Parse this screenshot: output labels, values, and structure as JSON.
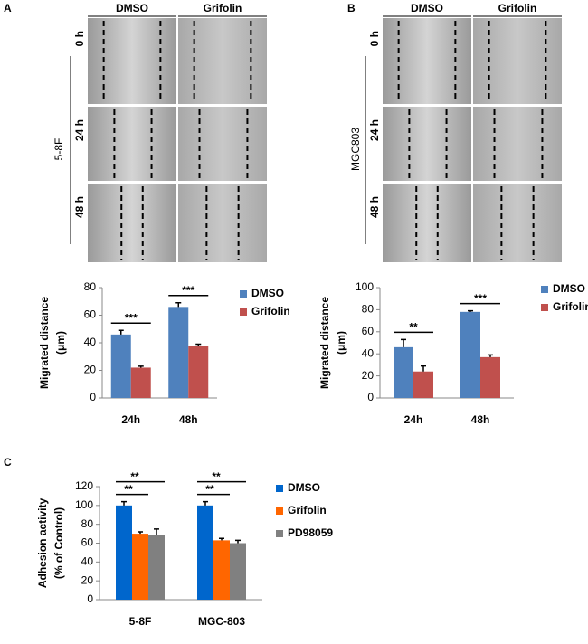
{
  "panel_labels": [
    "A",
    "B",
    "C"
  ],
  "micrographs": [
    {
      "cell_line": "5-8F",
      "columns": [
        "DMSO",
        "Grifolin"
      ],
      "rows": [
        "0 h",
        "24 h",
        "48 h"
      ]
    },
    {
      "cell_line": "MGC803",
      "columns": [
        "DMSO",
        "Grifolin"
      ],
      "rows": [
        "0 h",
        "24 h",
        "48 h"
      ]
    }
  ],
  "chart_data": [
    {
      "type": "bar",
      "y_label": [
        "Migrated distance",
        "(μm)"
      ],
      "categories": [
        "24h",
        "48h"
      ],
      "series": [
        {
          "name": "DMSO",
          "color": "#4f81bd",
          "values": [
            46,
            66
          ],
          "errors": [
            3,
            3
          ]
        },
        {
          "name": "Grifolin",
          "color": "#c0504d",
          "values": [
            22,
            38
          ],
          "errors": [
            1,
            1
          ]
        }
      ],
      "significance": [
        [
          "***"
        ],
        [
          "***"
        ]
      ],
      "ylim": [
        0,
        80
      ],
      "yticks": [
        0,
        20,
        40,
        60,
        80
      ]
    },
    {
      "type": "bar",
      "y_label": [
        "Migrated distance",
        "(μm)"
      ],
      "categories": [
        "24h",
        "48h"
      ],
      "series": [
        {
          "name": "DMSO",
          "color": "#4f81bd",
          "values": [
            46,
            78
          ],
          "errors": [
            7,
            1
          ]
        },
        {
          "name": "Grifolin",
          "color": "#c0504d",
          "values": [
            24,
            37
          ],
          "errors": [
            5,
            2
          ]
        }
      ],
      "significance": [
        [
          "**"
        ],
        [
          "***"
        ]
      ],
      "ylim": [
        0,
        100
      ],
      "yticks": [
        0,
        20,
        40,
        60,
        80,
        100
      ]
    },
    {
      "type": "bar",
      "y_label": [
        "Adhesion activity",
        "(% of Control)"
      ],
      "categories": [
        "5-8F",
        "MGC-803"
      ],
      "series": [
        {
          "name": "DMSO",
          "color": "#0066cc",
          "values": [
            100,
            100
          ],
          "errors": [
            4,
            4
          ]
        },
        {
          "name": "Grifolin",
          "color": "#ff6600",
          "values": [
            70,
            63
          ],
          "errors": [
            2,
            2
          ]
        },
        {
          "name": "PD98059",
          "color": "#808080",
          "values": [
            69,
            60
          ],
          "errors": [
            6,
            3
          ]
        }
      ],
      "significance": [
        [
          "**",
          "**"
        ],
        [
          "**",
          "**"
        ]
      ],
      "ylim": [
        0,
        120
      ],
      "yticks": [
        0,
        20,
        40,
        60,
        80,
        100,
        120
      ]
    }
  ]
}
